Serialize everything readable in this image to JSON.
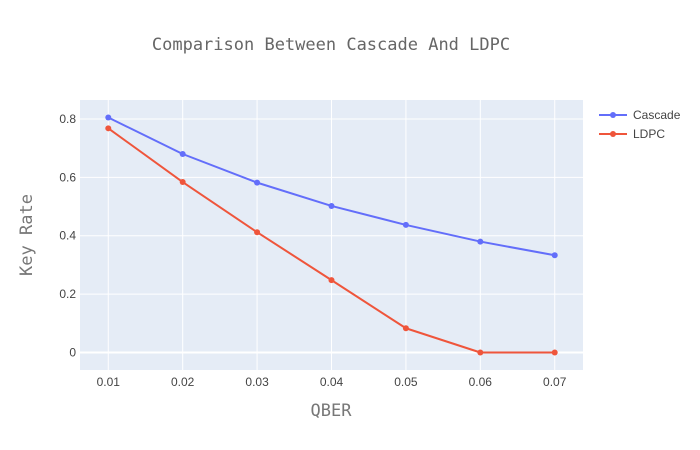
{
  "chart_data": {
    "type": "line",
    "title": "Comparison Between Cascade And LDPC",
    "xlabel": "QBER",
    "ylabel": "Key Rate",
    "x": [
      0.01,
      0.02,
      0.03,
      0.04,
      0.05,
      0.06,
      0.07
    ],
    "x_tick_labels": [
      "0.01",
      "0.02",
      "0.03",
      "0.04",
      "0.05",
      "0.06",
      "0.07"
    ],
    "y_ticks": [
      0,
      0.2,
      0.4,
      0.6,
      0.8
    ],
    "y_tick_labels": [
      "0",
      "0.2",
      "0.4",
      "0.6",
      "0.8"
    ],
    "xlim": [
      0.0062,
      0.0738
    ],
    "ylim": [
      -0.06,
      0.865
    ],
    "grid": true,
    "legend_position": "top-right",
    "series": [
      {
        "name": "Cascade",
        "color": "#636efa",
        "values": [
          0.805,
          0.68,
          0.582,
          0.502,
          0.437,
          0.38,
          0.333
        ]
      },
      {
        "name": "LDPC",
        "color": "#ef553b",
        "values": [
          0.768,
          0.584,
          0.412,
          0.248,
          0.083,
          0.0,
          0.0
        ]
      }
    ]
  }
}
